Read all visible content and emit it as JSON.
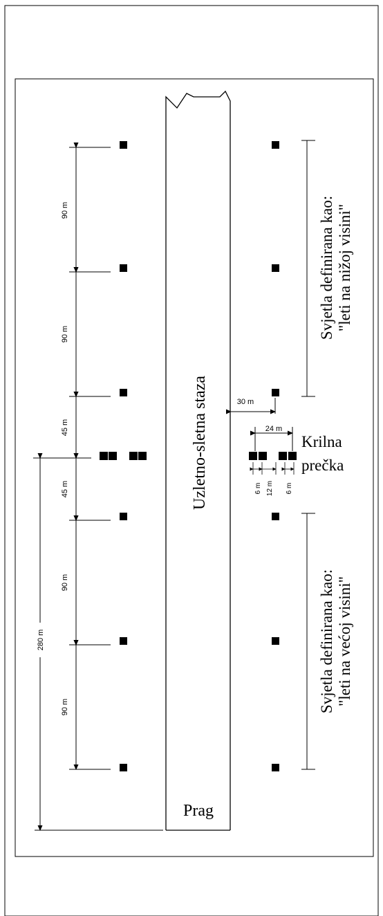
{
  "runway_label": "Uzletno-sletna staza",
  "threshold_label": "Prag",
  "wing_bar_label_line1": "Krilna",
  "wing_bar_label_line2": "prečka",
  "upper_group_label_line1": "Svjetla definirana kao:",
  "upper_group_label_line2": "\"leti na nižoj visini\"",
  "lower_group_label_line1": "Svjetla definirana kao:",
  "lower_group_label_line2": "\"leti na većoj visini\"",
  "dim_90_a": "90 m",
  "dim_90_b": "90 m",
  "dim_45_a": "45 m",
  "dim_45_b": "45 m",
  "dim_90_c": "90 m",
  "dim_90_d": "90 m",
  "dim_280": "280 m",
  "dim_30": "30 m",
  "dim_24": "24 m",
  "dim_6_a": "6 m",
  "dim_12": "12 m",
  "dim_6_b": "6 m"
}
